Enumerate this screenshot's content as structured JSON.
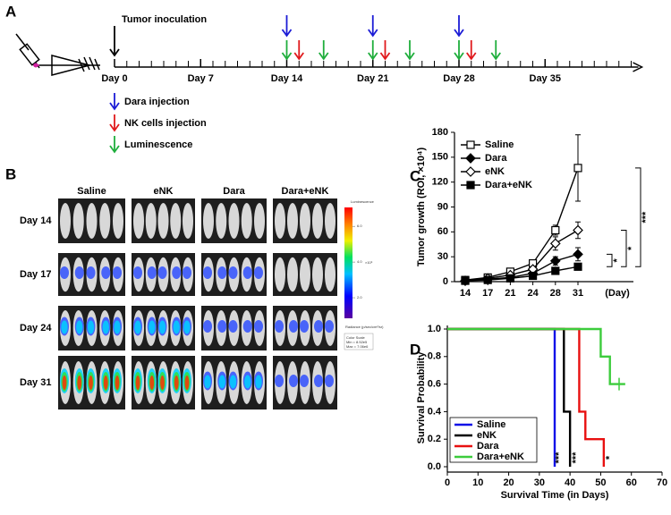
{
  "panels": [
    "A",
    "B",
    "C",
    "D"
  ],
  "timeline": {
    "event": "Tumor inoculation",
    "xlim": [
      0,
      42
    ],
    "ticks": [
      {
        "value": 0,
        "label": "Day 0"
      },
      {
        "value": 7,
        "label": "Day 7"
      },
      {
        "value": 14,
        "label": "Day 14"
      },
      {
        "value": 21,
        "label": "Day 21"
      },
      {
        "value": 28,
        "label": "Day 28"
      },
      {
        "value": 35,
        "label": "Day 35"
      }
    ],
    "dara_days": [
      14,
      21,
      28
    ],
    "nk_days": [
      15,
      22,
      29
    ],
    "luminescence_days": [
      14,
      17,
      21,
      24,
      28,
      31
    ],
    "legend": [
      "Dara injection",
      "NK cells injection",
      "Luminescence"
    ],
    "colors": [
      "#1c1cd6",
      "#e0191c",
      "#1fae3c"
    ]
  },
  "imaging": {
    "groups": [
      "Saline",
      "eNK",
      "Dara",
      "Dara+eNK"
    ],
    "days": [
      "Day 14",
      "Day 17",
      "Day 24",
      "Day 31"
    ],
    "colorbar": {
      "title": "Luminescence",
      "lim": [
        0.85,
        7.06
      ],
      "ticks": [
        {
          "value": 6,
          "label": "6.0"
        },
        {
          "value": 4,
          "label": "4.0"
        },
        {
          "value": 2,
          "label": "2.0"
        }
      ],
      "unit": "×10⁶",
      "radiance": "Radiance (p/sec/cm²/sr)",
      "scale": "Color Scale",
      "min": "Min = 8.52e5",
      "max": "Max = 7.06e6"
    }
  },
  "chart_data": [
    {
      "type": "line",
      "ylabel": "Tumor growth (ROI, ×10⁴)",
      "categories": [
        "14",
        "17",
        "21",
        "24",
        "28",
        "31"
      ],
      "x_unit": "(Day)",
      "ylim": [
        0,
        180
      ],
      "yticks": [
        0,
        30,
        60,
        90,
        120,
        150,
        180
      ],
      "legend": "upper left",
      "series": [
        {
          "name": "Saline",
          "marker": "square-open",
          "color": "#000000",
          "values": [
            2,
            5,
            12,
            22,
            62,
            137
          ],
          "errors": [
            0.5,
            1,
            2,
            2,
            6,
            40
          ]
        },
        {
          "name": "Dara",
          "marker": "diamond-filled",
          "color": "#000000",
          "values": [
            1,
            3,
            5,
            10,
            25,
            33
          ],
          "errors": [
            0.5,
            1,
            1,
            2,
            5,
            8
          ]
        },
        {
          "name": "eNK",
          "marker": "diamond-open",
          "color": "#000000",
          "values": [
            1,
            4,
            8,
            15,
            46,
            62
          ],
          "errors": [
            0.5,
            1,
            2,
            2,
            8,
            10
          ]
        },
        {
          "name": "Dara+eNK",
          "marker": "square-filled",
          "color": "#000000",
          "values": [
            1,
            2,
            4,
            7,
            13,
            18
          ],
          "errors": [
            0.3,
            0.5,
            1,
            1,
            2,
            3
          ]
        }
      ],
      "annotations": [
        "***",
        "*",
        "*"
      ]
    },
    {
      "type": "step",
      "xlabel": "Survival Time (in Days)",
      "ylabel": "Survival Probability",
      "xlim": [
        0,
        70
      ],
      "xticks": [
        0,
        10,
        20,
        30,
        40,
        50,
        60,
        70
      ],
      "ylim": [
        0,
        1
      ],
      "yticks": [
        {
          "value": 0,
          "label": "0.0"
        },
        {
          "value": 0.2,
          "label": "0.2"
        },
        {
          "value": 0.4,
          "label": "0.4"
        },
        {
          "value": 0.6,
          "label": "0.6"
        },
        {
          "value": 0.8,
          "label": "0.8"
        },
        {
          "value": 1,
          "label": "1.0"
        }
      ],
      "series": [
        {
          "name": "Saline",
          "color": "#1010e8",
          "x": [
            0,
            35,
            35
          ],
          "values": [
            1,
            1,
            0
          ]
        },
        {
          "name": "eNK",
          "color": "#000000",
          "x": [
            0,
            38,
            38,
            40,
            40
          ],
          "values": [
            1,
            1,
            0.4,
            0.4,
            0
          ]
        },
        {
          "name": "Dara",
          "color": "#e81010",
          "x": [
            0,
            43,
            43,
            45,
            45,
            51,
            51
          ],
          "values": [
            1,
            1,
            0.4,
            0.4,
            0.2,
            0.2,
            0
          ]
        },
        {
          "name": "Dara+eNK",
          "color": "#3ccc3c",
          "x": [
            0,
            50,
            50,
            53,
            53,
            58
          ],
          "values": [
            1,
            1,
            0.8,
            0.8,
            0.6,
            0.6
          ],
          "censored_x": [
            56
          ],
          "censored_values": [
            0.6
          ]
        }
      ],
      "annotations": [
        "***",
        "***",
        "*"
      ]
    }
  ]
}
